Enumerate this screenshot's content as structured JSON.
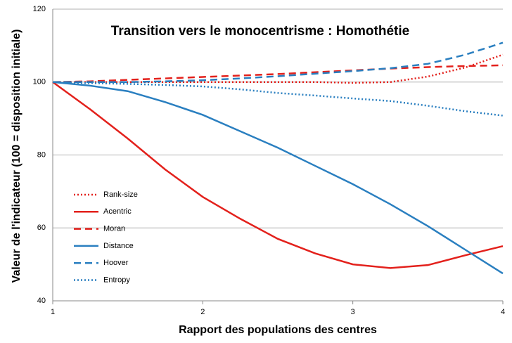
{
  "chart_data": {
    "type": "line",
    "title": "Transition vers le monocentrisme : Homothétie",
    "x_label": "Rapport des populations des centres",
    "y_label": "Valeur de l'indicateur (100 = disposition initiale)",
    "x": [
      1,
      1.25,
      1.5,
      1.75,
      2,
      2.25,
      2.5,
      2.75,
      3,
      3.25,
      3.5,
      3.75,
      4
    ],
    "xlim": [
      1,
      4
    ],
    "xticks": [
      1,
      2,
      3,
      4
    ],
    "ylim": [
      40,
      120
    ],
    "yticks": [
      40,
      60,
      80,
      100,
      120
    ],
    "grid": true,
    "legend": "left",
    "series": [
      {
        "name": "Rank-size",
        "color": "#e3211c",
        "style": "dotted",
        "values": [
          100,
          100,
          100,
          100,
          100,
          100,
          100,
          100,
          99.8,
          100,
          101.5,
          104,
          107.5
        ]
      },
      {
        "name": "Acentric",
        "color": "#e3211c",
        "style": "solid",
        "values": [
          100,
          92.5,
          84.5,
          76,
          68.5,
          62.5,
          57,
          53,
          50,
          49,
          49.8,
          52.5,
          55
        ]
      },
      {
        "name": "Moran",
        "color": "#e3211c",
        "style": "dashed",
        "values": [
          100,
          100.2,
          100.6,
          101,
          101.4,
          101.8,
          102.2,
          102.7,
          103.2,
          103.7,
          104.1,
          104.4,
          104.6
        ]
      },
      {
        "name": "Distance",
        "color": "#2a7fc0",
        "style": "solid",
        "values": [
          100,
          99,
          97.5,
          94.5,
          91,
          86.5,
          82,
          77,
          72,
          66.5,
          60.5,
          54,
          47.5
        ]
      },
      {
        "name": "Hoover",
        "color": "#2a7fc0",
        "style": "dashed",
        "values": [
          100,
          100,
          100,
          100.2,
          100.5,
          101,
          101.6,
          102.3,
          103,
          103.8,
          105,
          107.5,
          110.8
        ]
      },
      {
        "name": "Entropy",
        "color": "#2a7fc0",
        "style": "dotted",
        "values": [
          100,
          99.7,
          99.5,
          99.2,
          98.8,
          98,
          97,
          96.3,
          95.5,
          94.8,
          93.5,
          92,
          90.8
        ]
      }
    ]
  }
}
